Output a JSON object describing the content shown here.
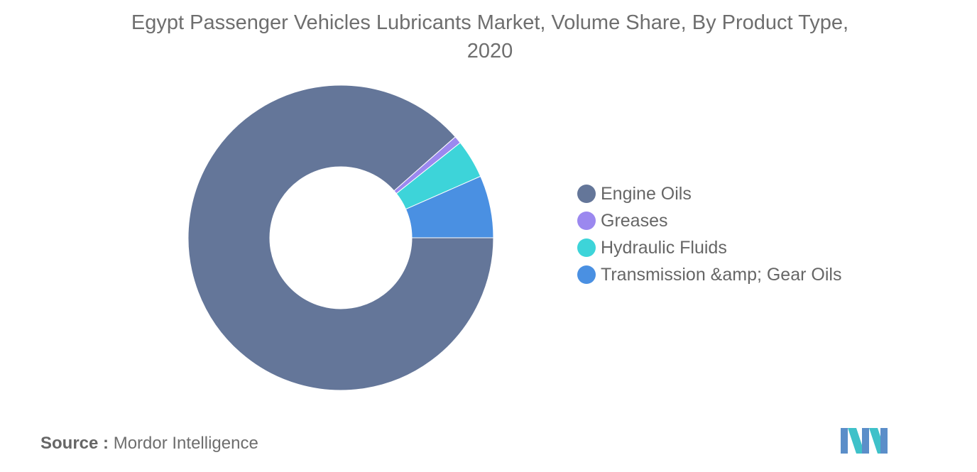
{
  "chart_data": {
    "type": "pie",
    "variant": "donut",
    "title": "Egypt Passenger Vehicles Lubricants Market, Volume Share, By Product Type, 2020",
    "categories": [
      "Engine Oils",
      "Greases",
      "Hydraulic Fluids",
      "Transmission &amp; Gear Oils"
    ],
    "values": [
      88.5,
      0.8,
      4.1,
      6.6
    ],
    "unit": "%",
    "colors": [
      "#647699",
      "#9b88ef",
      "#3dd4d9",
      "#4a90e2"
    ],
    "legend_position": "right"
  },
  "source": {
    "label": "Source :",
    "text": "Mordor Intelligence"
  },
  "logo": {
    "icon": "mordor-intelligence-logo",
    "colors": [
      "#5b8ec9",
      "#3fc1c9"
    ]
  }
}
